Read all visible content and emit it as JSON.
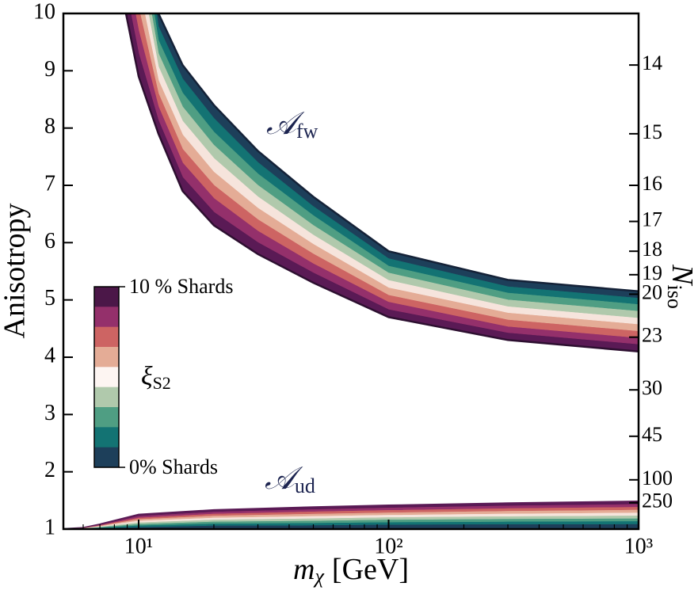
{
  "chart_data": {
    "type": "line",
    "xscale": "log",
    "xlim": [
      5,
      1000
    ],
    "ylim": [
      1,
      10
    ],
    "xticks": [
      {
        "value": 10,
        "label": "10¹"
      },
      {
        "value": 100,
        "label": "10²"
      },
      {
        "value": 1000,
        "label": "10³"
      }
    ],
    "yticks": [
      1,
      2,
      3,
      4,
      5,
      6,
      7,
      8,
      9,
      10
    ],
    "ylabel": "Anisotropy",
    "xlabel": {
      "text": "m",
      "sub": "χ",
      "unit": "[GeV]"
    },
    "y2label": {
      "text": "N",
      "sub": "iso"
    },
    "y2ticks": [
      14,
      15,
      16,
      17,
      18,
      19,
      20,
      23,
      30,
      45,
      100,
      250
    ],
    "y2tick_anisotropy": [
      9.1,
      7.9,
      7.0,
      6.37,
      5.85,
      5.44,
      5.1,
      4.35,
      3.43,
      2.62,
      1.86,
      1.46
    ],
    "groups": [
      {
        "label": "𝒜",
        "label_sub": "fw",
        "label_color": "#1c2450",
        "x": [
          8,
          10,
          12,
          15,
          20,
          30,
          50,
          100,
          300,
          1000
        ],
        "series": [
          {
            "color": "#1d3f5a",
            "values": [
              15,
              12.5,
              10.0,
              9.1,
              8.4,
              7.6,
              6.8,
              5.85,
              5.35,
              5.15
            ]
          },
          {
            "color": "#137373",
            "values": [
              14.56,
              12.1,
              9.77,
              8.86,
              8.17,
              7.4,
              6.63,
              5.72,
              5.23,
              5.03
            ]
          },
          {
            "color": "#4f9e83",
            "values": [
              14.11,
              11.7,
              9.53,
              8.61,
              7.93,
              7.2,
              6.47,
              5.59,
              5.12,
              4.92
            ]
          },
          {
            "color": "#b0c9ac",
            "values": [
              13.67,
              11.3,
              9.3,
              8.37,
              7.7,
              7.0,
              6.3,
              5.47,
              5.0,
              4.8
            ]
          },
          {
            "color": "#f6e4dc",
            "values": [
              13.22,
              10.9,
              9.07,
              8.12,
              7.47,
              6.8,
              6.13,
              5.34,
              4.88,
              4.68
            ]
          },
          {
            "color": "#e4ac96",
            "values": [
              12.78,
              10.5,
              8.83,
              7.88,
              7.23,
              6.6,
              5.97,
              5.21,
              4.77,
              4.57
            ]
          },
          {
            "color": "#cd6463",
            "values": [
              12.33,
              10.1,
              8.6,
              7.63,
              7.0,
              6.4,
              5.8,
              5.08,
              4.65,
              4.45
            ]
          },
          {
            "color": "#94306b",
            "values": [
              11.89,
              9.7,
              8.37,
              7.39,
              6.77,
              6.2,
              5.63,
              4.96,
              4.53,
              4.33
            ]
          },
          {
            "color": "#5a1a55",
            "values": [
              11.44,
              9.3,
              8.13,
              7.14,
              6.53,
              6.0,
              5.47,
              4.83,
              4.42,
              4.22
            ]
          },
          {
            "color": "#2d0f30",
            "values": [
              11.0,
              8.9,
              7.9,
              6.9,
              6.3,
              5.8,
              5.3,
              4.7,
              4.3,
              4.1
            ]
          }
        ]
      },
      {
        "label": "𝒜",
        "label_sub": "ud",
        "label_color": "#1c2450",
        "x": [
          5,
          6,
          7,
          10,
          20,
          50,
          100,
          300,
          1000
        ],
        "series": [
          {
            "color": "#5a1a55",
            "values": [
              1.0,
              1.02,
              1.08,
              1.25,
              1.33,
              1.38,
              1.41,
              1.45,
              1.48
            ]
          },
          {
            "color": "#94306b",
            "values": [
              1.0,
              1.018,
              1.071,
              1.222,
              1.296,
              1.34,
              1.368,
              1.403,
              1.43
            ]
          },
          {
            "color": "#cd6463",
            "values": [
              1.0,
              1.016,
              1.062,
              1.194,
              1.261,
              1.3,
              1.326,
              1.357,
              1.38
            ]
          },
          {
            "color": "#e4ac96",
            "values": [
              1.0,
              1.013,
              1.053,
              1.167,
              1.227,
              1.26,
              1.283,
              1.31,
              1.33
            ]
          },
          {
            "color": "#f6e4dc",
            "values": [
              1.0,
              1.011,
              1.044,
              1.139,
              1.192,
              1.22,
              1.241,
              1.263,
              1.28
            ]
          },
          {
            "color": "#b0c9ac",
            "values": [
              1.0,
              1.009,
              1.036,
              1.111,
              1.158,
              1.18,
              1.199,
              1.217,
              1.23
            ]
          },
          {
            "color": "#4f9e83",
            "values": [
              1.0,
              1.007,
              1.027,
              1.083,
              1.123,
              1.14,
              1.157,
              1.17,
              1.18
            ]
          },
          {
            "color": "#137373",
            "values": [
              1.0,
              1.004,
              1.018,
              1.056,
              1.089,
              1.1,
              1.114,
              1.123,
              1.13
            ]
          },
          {
            "color": "#1d3f5a",
            "values": [
              1.0,
              1.002,
              1.009,
              1.028,
              1.054,
              1.06,
              1.072,
              1.077,
              1.08
            ]
          },
          {
            "color": "#1d3f5a",
            "values": [
              1.0,
              1.0,
              1.0,
              1.0,
              1.02,
              1.02,
              1.03,
              1.03,
              1.03
            ]
          }
        ]
      }
    ],
    "colorbar": {
      "label": "ξ",
      "label_sub": "S2",
      "top_label": "10 % Shards",
      "bottom_label": "0% Shards",
      "colors": [
        "#4b1748",
        "#94306b",
        "#cd6463",
        "#e4ac96",
        "#fdf5f2",
        "#b0c9ac",
        "#4f9e83",
        "#137373",
        "#1d3f5a"
      ]
    }
  }
}
